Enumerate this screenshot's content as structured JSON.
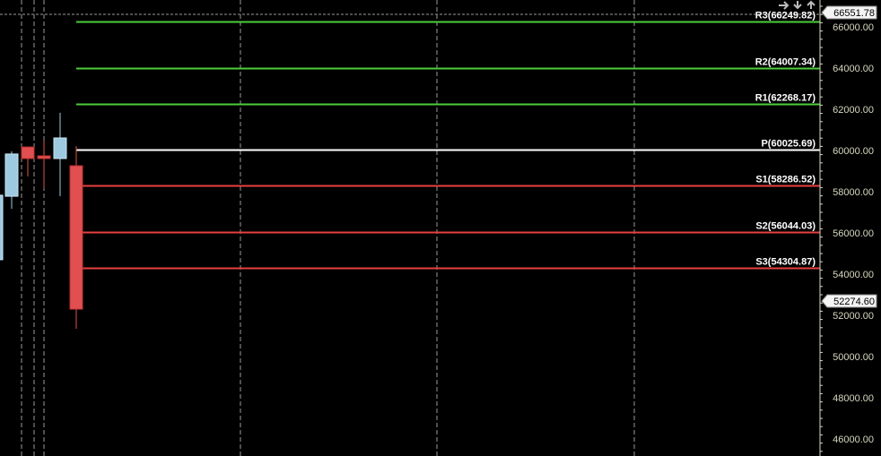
{
  "chart_data": {
    "type": "candlestick",
    "ylim": [
      45000,
      66700
    ],
    "y_ticks": [
      "66000.00",
      "64000.00",
      "62000.00",
      "60000.00",
      "58000.00",
      "56000.00",
      "54000.00",
      "52000.00",
      "50000.00",
      "48000.00",
      "46000.00"
    ],
    "grid": "vertical dashed",
    "candles": [
      {
        "open": 54700,
        "close": 57830,
        "high": 57830,
        "low": 54700
      },
      {
        "open": 57780,
        "close": 59830,
        "high": 59960,
        "low": 57170
      },
      {
        "open": 60170,
        "close": 59610,
        "high": 60170,
        "low": 58740
      },
      {
        "open": 59740,
        "close": 59610,
        "high": 60480,
        "low": 58170
      },
      {
        "open": 59610,
        "close": 60610,
        "high": 61830,
        "low": 57780
      },
      {
        "open": 59260,
        "close": 52300,
        "high": 60220,
        "low": 51350
      }
    ],
    "pivot_levels": [
      {
        "label": "R3(66249.82)",
        "value": 66249.82,
        "color": "#4ccd3c"
      },
      {
        "label": "R2(64007.34)",
        "value": 64007.34,
        "color": "#4ccd3c"
      },
      {
        "label": "R1(62268.17)",
        "value": 62268.17,
        "color": "#4ccd3c"
      },
      {
        "label": "P(60025.69)",
        "value": 60025.69,
        "color": "#ffffff"
      },
      {
        "label": "S1(58286.52)",
        "value": 58286.52,
        "color": "#e84040"
      },
      {
        "label": "S2(56044.03)",
        "value": 56044.03,
        "color": "#e84040"
      },
      {
        "label": "S3(54304.87)",
        "value": 54304.87,
        "color": "#e84040"
      }
    ],
    "price_tags": [
      {
        "label": "66551.78",
        "value": 66551.78
      },
      {
        "label": "52274.60",
        "value": 52274.6
      }
    ],
    "colors": {
      "up": "#9ecae1",
      "down": "#e05050",
      "axis_text": "#d8d8c0"
    }
  }
}
